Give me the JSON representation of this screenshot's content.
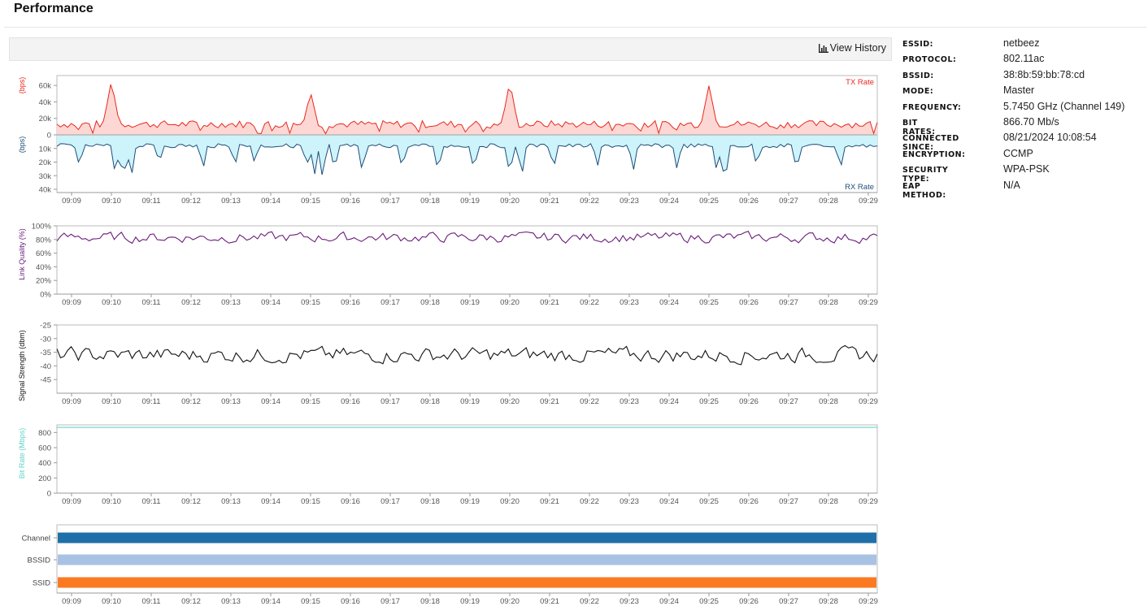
{
  "page": {
    "title": "Performance"
  },
  "toolbar": {
    "view_history_label": "View History",
    "view_history_icon": "bar-chart-icon"
  },
  "time_ticks": [
    "09:09",
    "09:10",
    "09:11",
    "09:12",
    "09:13",
    "09:14",
    "09:15",
    "09:16",
    "09:17",
    "09:18",
    "09:19",
    "09:20",
    "09:21",
    "09:22",
    "09:23",
    "09:24",
    "09:25",
    "09:26",
    "09:27",
    "09:28",
    "09:29"
  ],
  "info": {
    "rows": [
      {
        "label": "ESSID:",
        "value": "netbeez"
      },
      {
        "label": "PROTOCOL:",
        "value": "802.11ac"
      },
      {
        "label": "BSSID:",
        "value": "38:8b:59:bb:78:cd"
      },
      {
        "label": "MODE:",
        "value": "Master"
      },
      {
        "label": "FREQUENCY:",
        "value": "5.7450 GHz (Channel 149)"
      },
      {
        "label": "BIT RATES:",
        "value": "866.70 Mb/s"
      },
      {
        "label": "CONNECTED SINCE:",
        "value": "08/21/2024 10:08:54"
      },
      {
        "label": "ENCRYPTION:",
        "value": "CCMP"
      },
      {
        "label": "SECURITY TYPE:",
        "value": "WPA-PSK"
      },
      {
        "label": "EAP METHOD:",
        "value": "N/A"
      }
    ]
  },
  "chart_data": [
    {
      "type": "area",
      "name": "throughput",
      "series": [
        {
          "name": "TX Rate",
          "ylabel": "(bps)",
          "color": "#e8281e",
          "fill": "#fdd7d3",
          "y_ticks": [
            "60k",
            "40k",
            "20k",
            "0"
          ],
          "ylim": [
            0,
            70000
          ],
          "base": 13000,
          "spikes": [
            [
              1.0,
              66000
            ],
            [
              6.0,
              52000
            ],
            [
              11.0,
              65000
            ],
            [
              16.0,
              60000
            ]
          ]
        },
        {
          "name": "RX Rate",
          "ylabel": "(bps)",
          "color": "#1f4e79",
          "fill": "#cdf3fb",
          "y_ticks": [
            "10k",
            "20k",
            "30k",
            "40k"
          ],
          "ylim": [
            0,
            40000
          ],
          "base": 8000,
          "dips": [
            [
              0.2,
              24000
            ],
            [
              1.1,
              30000
            ],
            [
              1.3,
              33000
            ],
            [
              1.5,
              32000
            ],
            [
              2.2,
              22000
            ],
            [
              3.3,
              26000
            ],
            [
              4.1,
              24000
            ],
            [
              4.6,
              22000
            ],
            [
              5.9,
              24000
            ],
            [
              6.1,
              30000
            ],
            [
              6.3,
              32000
            ],
            [
              6.6,
              27000
            ],
            [
              7.3,
              28000
            ],
            [
              8.3,
              26000
            ],
            [
              9.2,
              28000
            ],
            [
              10.1,
              27000
            ],
            [
              11.0,
              30000
            ],
            [
              11.3,
              31000
            ],
            [
              12.1,
              26000
            ],
            [
              13.2,
              24000
            ],
            [
              14.1,
              27000
            ],
            [
              15.2,
              26000
            ],
            [
              16.2,
              28000
            ],
            [
              16.4,
              36000
            ],
            [
              17.2,
              24000
            ],
            [
              18.2,
              27000
            ],
            [
              19.3,
              26000
            ],
            [
              20.4,
              25000
            ]
          ]
        }
      ],
      "x_ticks_ref": "time_ticks"
    },
    {
      "type": "line",
      "name": "link-quality",
      "ylabel": "Link Quality (%)",
      "color": "#6a1b7a",
      "y_ticks": [
        "100%",
        "80%",
        "60%",
        "40%",
        "20%",
        "0%"
      ],
      "ylim": [
        0,
        100
      ],
      "base": 83,
      "jitter": 6
    },
    {
      "type": "line",
      "name": "signal-strength",
      "ylabel": "Signal Strength (dbm)",
      "color": "#111111",
      "y_ticks": [
        "-25",
        "-30",
        "-35",
        "-40",
        "-45"
      ],
      "ylim": [
        -50,
        -25
      ],
      "base": -36,
      "jitter": 2.2
    },
    {
      "type": "line",
      "name": "bit-rate",
      "ylabel": "Bit Rate (Mbps)",
      "color": "#5fd3c9",
      "y_ticks": [
        "800",
        "600",
        "400",
        "200",
        "0"
      ],
      "ylim": [
        0,
        900
      ],
      "base": 866.7,
      "jitter": 0
    },
    {
      "type": "bar",
      "name": "timeline",
      "categories": [
        "Channel",
        "BSSID",
        "SSID"
      ],
      "colors": [
        "#1f6fa8",
        "#a8c2e3",
        "#fb7a21"
      ]
    }
  ]
}
